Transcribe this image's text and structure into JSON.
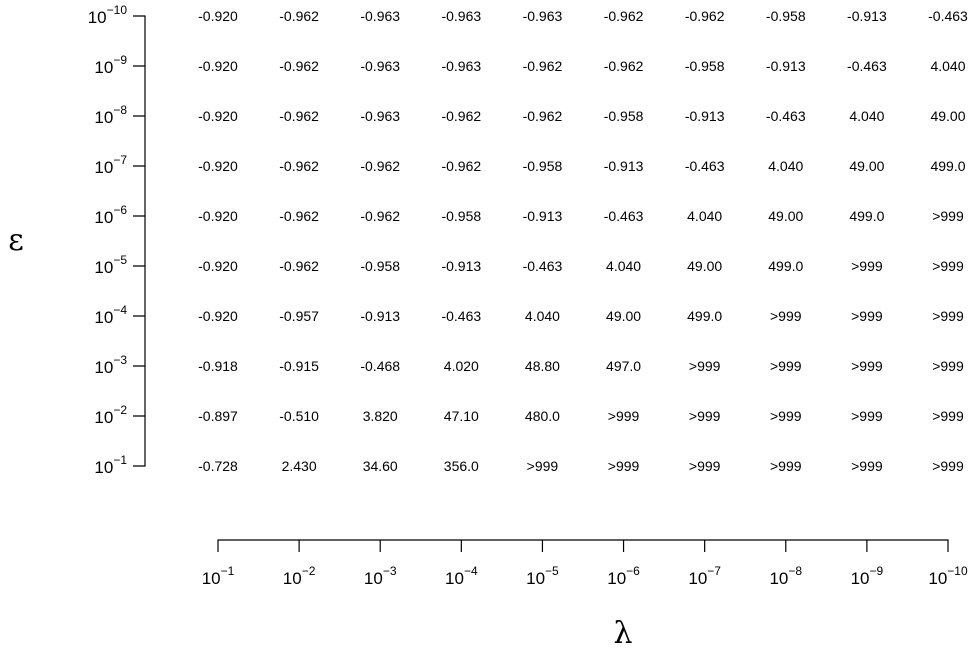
{
  "chart_data": {
    "type": "table",
    "title": "",
    "xlabel": "λ",
    "ylabel": "ε",
    "columns": [
      {
        "base": "10",
        "exp": "−1"
      },
      {
        "base": "10",
        "exp": "−2"
      },
      {
        "base": "10",
        "exp": "−3"
      },
      {
        "base": "10",
        "exp": "−4"
      },
      {
        "base": "10",
        "exp": "−5"
      },
      {
        "base": "10",
        "exp": "−6"
      },
      {
        "base": "10",
        "exp": "−7"
      },
      {
        "base": "10",
        "exp": "−8"
      },
      {
        "base": "10",
        "exp": "−9"
      },
      {
        "base": "10",
        "exp": "−10"
      }
    ],
    "rows": [
      {
        "base": "10",
        "exp": "−10"
      },
      {
        "base": "10",
        "exp": "−9"
      },
      {
        "base": "10",
        "exp": "−8"
      },
      {
        "base": "10",
        "exp": "−7"
      },
      {
        "base": "10",
        "exp": "−6"
      },
      {
        "base": "10",
        "exp": "−5"
      },
      {
        "base": "10",
        "exp": "−4"
      },
      {
        "base": "10",
        "exp": "−3"
      },
      {
        "base": "10",
        "exp": "−2"
      },
      {
        "base": "10",
        "exp": "−1"
      }
    ],
    "values": [
      [
        "-0.920",
        "-0.962",
        "-0.963",
        "-0.963",
        "-0.963",
        "-0.962",
        "-0.962",
        "-0.958",
        "-0.913",
        "-0.463"
      ],
      [
        "-0.920",
        "-0.962",
        "-0.963",
        "-0.963",
        "-0.962",
        "-0.962",
        "-0.958",
        "-0.913",
        "-0.463",
        "4.040"
      ],
      [
        "-0.920",
        "-0.962",
        "-0.963",
        "-0.962",
        "-0.962",
        "-0.958",
        "-0.913",
        "-0.463",
        "4.040",
        "49.00"
      ],
      [
        "-0.920",
        "-0.962",
        "-0.962",
        "-0.962",
        "-0.958",
        "-0.913",
        "-0.463",
        "4.040",
        "49.00",
        "499.0"
      ],
      [
        "-0.920",
        "-0.962",
        "-0.962",
        "-0.958",
        "-0.913",
        "-0.463",
        "4.040",
        "49.00",
        "499.0",
        ">999"
      ],
      [
        "-0.920",
        "-0.962",
        "-0.958",
        "-0.913",
        "-0.463",
        "4.040",
        "49.00",
        "499.0",
        ">999",
        ">999"
      ],
      [
        "-0.920",
        "-0.957",
        "-0.913",
        "-0.463",
        "4.040",
        "49.00",
        "499.0",
        ">999",
        ">999",
        ">999"
      ],
      [
        "-0.918",
        "-0.915",
        "-0.468",
        "4.020",
        "48.80",
        "497.0",
        ">999",
        ">999",
        ">999",
        ">999"
      ],
      [
        "-0.897",
        "-0.510",
        "3.820",
        "47.10",
        "480.0",
        ">999",
        ">999",
        ">999",
        ">999",
        ">999"
      ],
      [
        "-0.728",
        "2.430",
        "34.60",
        "356.0",
        ">999",
        ">999",
        ">999",
        ">999",
        ">999",
        ">999"
      ]
    ],
    "grid": false,
    "legend": "none"
  }
}
